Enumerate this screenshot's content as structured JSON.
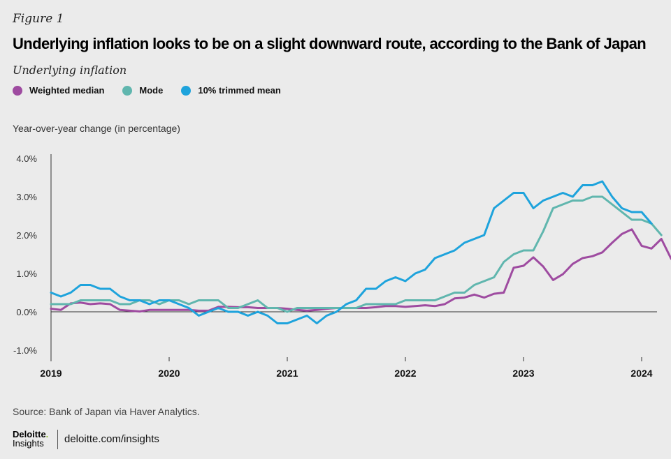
{
  "figure_label": "Figure 1",
  "title": "Underlying inflation looks to be on a slight downward route, according to the Bank of Japan",
  "subtitle": "Underlying inflation",
  "source": "Source: Bank of Japan via Haver Analytics.",
  "logo": {
    "brand": "Deloitte",
    "brand_dot": ".",
    "sub": "Insights"
  },
  "site": "deloitte.com/insights",
  "chart_data": {
    "type": "line",
    "ylabel": "Year-over-year change (in percentage)",
    "ylim": [
      -1.0,
      4.0
    ],
    "y_ticks": [
      4.0,
      3.0,
      2.0,
      1.0,
      0.0,
      -1.0
    ],
    "y_tick_labels": [
      "4.0%",
      "3.0%",
      "2.0%",
      "1.0%",
      "0.0%",
      "-1.0%"
    ],
    "x_start": "2019-01",
    "x_ticks": [
      "2019",
      "2020",
      "2021",
      "2022",
      "2023",
      "2024"
    ],
    "grid": false,
    "legend_position": "top-left",
    "series": [
      {
        "name": "Weighted median",
        "color": "#9e4ba0",
        "values": [
          0.08,
          0.05,
          0.22,
          0.24,
          0.2,
          0.22,
          0.2,
          0.05,
          0.03,
          0.01,
          0.05,
          0.05,
          0.05,
          0.05,
          0.05,
          0.03,
          0.03,
          0.13,
          0.13,
          0.12,
          0.12,
          0.1,
          0.1,
          0.1,
          0.08,
          0.05,
          0.03,
          0.05,
          0.08,
          0.1,
          0.1,
          0.1,
          0.1,
          0.12,
          0.15,
          0.15,
          0.13,
          0.15,
          0.17,
          0.15,
          0.2,
          0.35,
          0.37,
          0.45,
          0.37,
          0.47,
          0.5,
          1.15,
          1.2,
          1.42,
          1.18,
          0.83,
          0.98,
          1.25,
          1.4,
          1.45,
          1.55,
          1.8,
          2.03,
          2.15,
          1.72,
          1.65,
          1.9,
          1.38
        ]
      },
      {
        "name": "Mode",
        "color": "#60b6ae",
        "values": [
          0.2,
          0.2,
          0.2,
          0.3,
          0.3,
          0.3,
          0.3,
          0.2,
          0.2,
          0.3,
          0.3,
          0.2,
          0.3,
          0.3,
          0.2,
          0.3,
          0.3,
          0.3,
          0.1,
          0.1,
          0.2,
          0.3,
          0.1,
          0.1,
          0.0,
          0.1,
          0.1,
          0.1,
          0.1,
          0.1,
          0.1,
          0.1,
          0.2,
          0.2,
          0.2,
          0.2,
          0.3,
          0.3,
          0.3,
          0.3,
          0.4,
          0.5,
          0.5,
          0.7,
          0.8,
          0.9,
          1.3,
          1.5,
          1.6,
          1.6,
          2.1,
          2.7,
          2.8,
          2.9,
          2.9,
          3.0,
          3.0,
          2.8,
          2.6,
          2.4,
          2.4,
          2.3,
          2.0
        ]
      },
      {
        "name": "10% trimmed mean",
        "color": "#1ea3dc",
        "values": [
          0.5,
          0.4,
          0.5,
          0.7,
          0.7,
          0.6,
          0.6,
          0.4,
          0.3,
          0.3,
          0.2,
          0.3,
          0.3,
          0.2,
          0.1,
          -0.1,
          0.0,
          0.1,
          0.0,
          0.0,
          -0.1,
          0.0,
          -0.1,
          -0.3,
          -0.3,
          -0.2,
          -0.1,
          -0.3,
          -0.1,
          0.0,
          0.2,
          0.3,
          0.6,
          0.6,
          0.8,
          0.9,
          0.8,
          1.0,
          1.1,
          1.4,
          1.5,
          1.6,
          1.8,
          1.9,
          2.0,
          2.7,
          2.9,
          3.1,
          3.1,
          2.7,
          2.9,
          3.0,
          3.1,
          3.0,
          3.3,
          3.3,
          3.4,
          3.0,
          2.7,
          2.6,
          2.6,
          2.3
        ]
      }
    ]
  }
}
